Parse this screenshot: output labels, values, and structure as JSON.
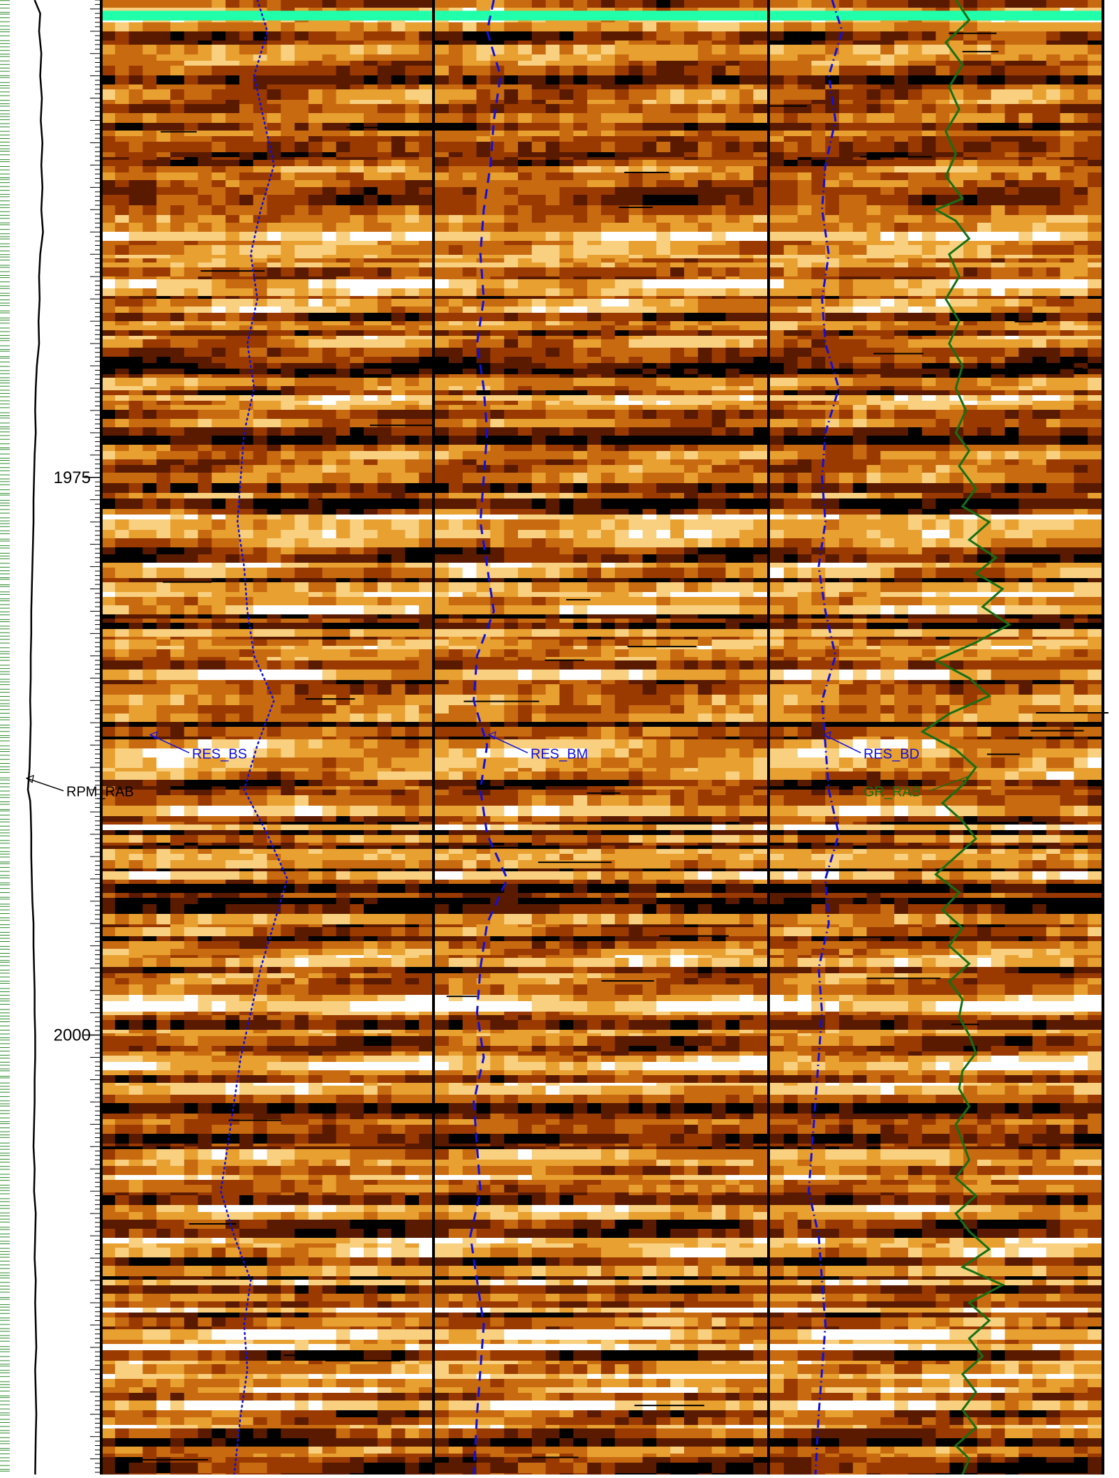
{
  "chart_data": {
    "type": "well-log",
    "depth_axis": {
      "unit": "",
      "range": [
        1953.6,
        2019.7
      ],
      "major_ticks": [
        1975,
        2000
      ],
      "minor_tick_step": 1
    },
    "tracks": [
      {
        "name": "RPM_RAB",
        "kind": "curve-track",
        "label": "RPM_RAB",
        "label_depth": 1989.3
      },
      {
        "name": "RES_BS",
        "kind": "image-track",
        "label": "RES_BS",
        "label_depth": 1987.6
      },
      {
        "name": "RES_BM",
        "kind": "image-track",
        "label": "RES_BM",
        "label_depth": 1987.6
      },
      {
        "name": "RES_BD",
        "kind": "image-track",
        "label": "RES_BD",
        "label_depth": 1987.6
      },
      {
        "name": "GR_RAB",
        "kind": "curve-overlay",
        "label": "GR_RAB",
        "label_depth": 1989.3
      }
    ],
    "top_marker": {
      "depth": 1954.3,
      "color": "#22ffaa"
    },
    "colors": {
      "RES_BS": "#1010dd",
      "RES_BM": "#1010dd",
      "RES_BD": "#1010dd",
      "GR_RAB": "#157015",
      "RPM_RAB": "#000000",
      "tick_green": "#2a8a2a",
      "image_palette": [
        "#000000",
        "#5a1a00",
        "#9a3a00",
        "#c86a10",
        "#e8a030",
        "#f8d080",
        "#ffffff"
      ]
    },
    "curves": {
      "RES_BS": [
        [
          1953.6,
          0.47
        ],
        [
          1955.0,
          0.5
        ],
        [
          1957.0,
          0.46
        ],
        [
          1959.0,
          0.49
        ],
        [
          1961.0,
          0.52
        ],
        [
          1963.0,
          0.48
        ],
        [
          1965.0,
          0.45
        ],
        [
          1967.0,
          0.47
        ],
        [
          1969.0,
          0.44
        ],
        [
          1971.0,
          0.46
        ],
        [
          1973.0,
          0.43
        ],
        [
          1975.0,
          0.42
        ],
        [
          1977.0,
          0.41
        ],
        [
          1979.0,
          0.43
        ],
        [
          1981.0,
          0.44
        ],
        [
          1983.0,
          0.46
        ],
        [
          1985.0,
          0.52
        ],
        [
          1987.0,
          0.47
        ],
        [
          1989.0,
          0.43
        ],
        [
          1991.0,
          0.5
        ],
        [
          1993.0,
          0.56
        ],
        [
          1995.0,
          0.52
        ],
        [
          1997.0,
          0.48
        ],
        [
          1999.0,
          0.45
        ],
        [
          2001.0,
          0.42
        ],
        [
          2003.0,
          0.4
        ],
        [
          2005.0,
          0.38
        ],
        [
          2007.0,
          0.36
        ],
        [
          2009.0,
          0.4
        ],
        [
          2011.0,
          0.45
        ],
        [
          2013.0,
          0.43
        ],
        [
          2015.0,
          0.44
        ],
        [
          2017.0,
          0.42
        ],
        [
          2019.7,
          0.4
        ]
      ],
      "RES_BM": [
        [
          1953.6,
          0.18
        ],
        [
          1955.0,
          0.16
        ],
        [
          1957.0,
          0.2
        ],
        [
          1959.0,
          0.18
        ],
        [
          1961.0,
          0.17
        ],
        [
          1963.0,
          0.15
        ],
        [
          1965.0,
          0.14
        ],
        [
          1967.0,
          0.15
        ],
        [
          1969.0,
          0.13
        ],
        [
          1971.0,
          0.15
        ],
        [
          1973.0,
          0.16
        ],
        [
          1975.0,
          0.15
        ],
        [
          1977.0,
          0.14
        ],
        [
          1979.0,
          0.16
        ],
        [
          1981.0,
          0.18
        ],
        [
          1983.0,
          0.13
        ],
        [
          1985.0,
          0.12
        ],
        [
          1987.0,
          0.16
        ],
        [
          1989.0,
          0.14
        ],
        [
          1991.0,
          0.16
        ],
        [
          1993.0,
          0.22
        ],
        [
          1995.0,
          0.16
        ],
        [
          1997.0,
          0.14
        ],
        [
          1999.0,
          0.13
        ],
        [
          2001.0,
          0.15
        ],
        [
          2003.0,
          0.12
        ],
        [
          2005.0,
          0.13
        ],
        [
          2007.0,
          0.14
        ],
        [
          2009.0,
          0.11
        ],
        [
          2011.0,
          0.13
        ],
        [
          2013.0,
          0.15
        ],
        [
          2015.0,
          0.14
        ],
        [
          2017.0,
          0.13
        ],
        [
          2019.7,
          0.12
        ]
      ],
      "RES_BD": [
        [
          1953.6,
          0.19
        ],
        [
          1955.0,
          0.22
        ],
        [
          1957.0,
          0.18
        ],
        [
          1959.0,
          0.2
        ],
        [
          1961.0,
          0.17
        ],
        [
          1963.0,
          0.16
        ],
        [
          1965.0,
          0.18
        ],
        [
          1967.0,
          0.16
        ],
        [
          1969.0,
          0.17
        ],
        [
          1971.0,
          0.21
        ],
        [
          1973.0,
          0.17
        ],
        [
          1975.0,
          0.16
        ],
        [
          1977.0,
          0.17
        ],
        [
          1979.0,
          0.15
        ],
        [
          1981.0,
          0.17
        ],
        [
          1983.0,
          0.2
        ],
        [
          1985.0,
          0.16
        ],
        [
          1987.0,
          0.17
        ],
        [
          1989.0,
          0.18
        ],
        [
          1991.0,
          0.21
        ],
        [
          1993.0,
          0.17
        ],
        [
          1995.0,
          0.18
        ],
        [
          1997.0,
          0.15
        ],
        [
          1999.0,
          0.16
        ],
        [
          2001.0,
          0.15
        ],
        [
          2003.0,
          0.14
        ],
        [
          2005.0,
          0.13
        ],
        [
          2007.0,
          0.12
        ],
        [
          2009.0,
          0.15
        ],
        [
          2011.0,
          0.16
        ],
        [
          2013.0,
          0.17
        ],
        [
          2015.0,
          0.16
        ],
        [
          2017.0,
          0.15
        ],
        [
          2019.7,
          0.14
        ]
      ],
      "GR_RAB": [
        [
          1953.6,
          0.56
        ],
        [
          1954.5,
          0.6
        ],
        [
          1955.5,
          0.53
        ],
        [
          1956.5,
          0.58
        ],
        [
          1957.5,
          0.54
        ],
        [
          1958.5,
          0.57
        ],
        [
          1959.5,
          0.53
        ],
        [
          1960.5,
          0.56
        ],
        [
          1961.5,
          0.53
        ],
        [
          1962.5,
          0.58
        ],
        [
          1963.0,
          0.5
        ],
        [
          1963.5,
          0.56
        ],
        [
          1964.3,
          0.6
        ],
        [
          1965.0,
          0.54
        ],
        [
          1966.0,
          0.57
        ],
        [
          1967.0,
          0.53
        ],
        [
          1968.0,
          0.57
        ],
        [
          1969.0,
          0.54
        ],
        [
          1970.0,
          0.58
        ],
        [
          1971.0,
          0.56
        ],
        [
          1972.0,
          0.59
        ],
        [
          1973.0,
          0.56
        ],
        [
          1973.8,
          0.6
        ],
        [
          1974.5,
          0.57
        ],
        [
          1975.5,
          0.62
        ],
        [
          1976.3,
          0.58
        ],
        [
          1977.0,
          0.66
        ],
        [
          1977.8,
          0.6
        ],
        [
          1978.6,
          0.68
        ],
        [
          1979.3,
          0.62
        ],
        [
          1980.0,
          0.7
        ],
        [
          1980.8,
          0.64
        ],
        [
          1981.6,
          0.72
        ],
        [
          1982.4,
          0.62
        ],
        [
          1983.2,
          0.5
        ],
        [
          1984.0,
          0.6
        ],
        [
          1984.8,
          0.66
        ],
        [
          1985.6,
          0.54
        ],
        [
          1986.4,
          0.46
        ],
        [
          1987.2,
          0.56
        ],
        [
          1988.0,
          0.62
        ],
        [
          1988.8,
          0.58
        ],
        [
          1989.6,
          0.52
        ],
        [
          1990.4,
          0.58
        ],
        [
          1991.2,
          0.62
        ],
        [
          1992.0,
          0.56
        ],
        [
          1992.8,
          0.5
        ],
        [
          1993.6,
          0.57
        ],
        [
          1994.4,
          0.52
        ],
        [
          1995.2,
          0.58
        ],
        [
          1996.0,
          0.54
        ],
        [
          1996.8,
          0.6
        ],
        [
          1997.6,
          0.54
        ],
        [
          1998.4,
          0.58
        ],
        [
          1999.2,
          0.57
        ],
        [
          2000.0,
          0.6
        ],
        [
          2000.8,
          0.62
        ],
        [
          2001.6,
          0.58
        ],
        [
          2002.4,
          0.57
        ],
        [
          2003.2,
          0.6
        ],
        [
          2004.0,
          0.56
        ],
        [
          2004.8,
          0.58
        ],
        [
          2005.6,
          0.6
        ],
        [
          2006.4,
          0.56
        ],
        [
          2007.2,
          0.62
        ],
        [
          2008.0,
          0.56
        ],
        [
          2008.8,
          0.6
        ],
        [
          2009.6,
          0.66
        ],
        [
          2010.4,
          0.58
        ],
        [
          2011.2,
          0.7
        ],
        [
          2012.0,
          0.6
        ],
        [
          2012.8,
          0.66
        ],
        [
          2013.6,
          0.6
        ],
        [
          2014.4,
          0.64
        ],
        [
          2015.2,
          0.58
        ],
        [
          2016.0,
          0.62
        ],
        [
          2016.8,
          0.58
        ],
        [
          2017.6,
          0.62
        ],
        [
          2018.4,
          0.56
        ],
        [
          2019.0,
          0.6
        ],
        [
          2019.7,
          0.58
        ]
      ],
      "RPM_RAB": [
        [
          1953.6,
          0.62
        ],
        [
          1954.2,
          0.72
        ],
        [
          1955.0,
          0.7
        ],
        [
          1956.0,
          0.74
        ],
        [
          1957.0,
          0.72
        ],
        [
          1958.0,
          0.75
        ],
        [
          1959.0,
          0.73
        ],
        [
          1960.0,
          0.76
        ],
        [
          1961.0,
          0.74
        ],
        [
          1962.0,
          0.76
        ],
        [
          1963.0,
          0.74
        ],
        [
          1964.0,
          0.77
        ],
        [
          1965.0,
          0.72
        ],
        [
          1966.0,
          0.7
        ],
        [
          1967.0,
          0.71
        ],
        [
          1968.0,
          0.69
        ],
        [
          1969.0,
          0.7
        ],
        [
          1970.0,
          0.66
        ],
        [
          1971.0,
          0.64
        ],
        [
          1972.0,
          0.63
        ],
        [
          1973.0,
          0.64
        ],
        [
          1974.0,
          0.62
        ],
        [
          1975.0,
          0.61
        ],
        [
          1976.0,
          0.6
        ],
        [
          1977.0,
          0.6
        ],
        [
          1978.0,
          0.59
        ],
        [
          1979.0,
          0.58
        ],
        [
          1980.0,
          0.57
        ],
        [
          1981.0,
          0.56
        ],
        [
          1982.0,
          0.56
        ],
        [
          1983.0,
          0.55
        ],
        [
          1984.0,
          0.55
        ],
        [
          1985.0,
          0.54
        ],
        [
          1986.0,
          0.55
        ],
        [
          1987.0,
          0.54
        ],
        [
          1988.0,
          0.53
        ],
        [
          1989.0,
          0.5
        ],
        [
          1989.5,
          0.54
        ],
        [
          1990.0,
          0.55
        ],
        [
          1991.0,
          0.56
        ],
        [
          1992.0,
          0.56
        ],
        [
          1993.0,
          0.57
        ],
        [
          1994.0,
          0.58
        ],
        [
          1995.0,
          0.6
        ],
        [
          1996.0,
          0.6
        ],
        [
          1997.0,
          0.61
        ],
        [
          1998.0,
          0.62
        ],
        [
          1999.0,
          0.62
        ],
        [
          2000.0,
          0.63
        ],
        [
          2001.0,
          0.63
        ],
        [
          2002.0,
          0.62
        ],
        [
          2003.0,
          0.62
        ],
        [
          2004.0,
          0.61
        ],
        [
          2005.0,
          0.6
        ],
        [
          2006.0,
          0.62
        ],
        [
          2007.0,
          0.61
        ],
        [
          2008.0,
          0.64
        ],
        [
          2009.0,
          0.63
        ],
        [
          2010.0,
          0.62
        ],
        [
          2011.0,
          0.64
        ],
        [
          2012.0,
          0.63
        ],
        [
          2013.0,
          0.64
        ],
        [
          2014.0,
          0.65
        ],
        [
          2015.0,
          0.63
        ],
        [
          2016.0,
          0.64
        ],
        [
          2017.0,
          0.65
        ],
        [
          2018.0,
          0.64
        ],
        [
          2019.7,
          0.63
        ]
      ]
    }
  }
}
